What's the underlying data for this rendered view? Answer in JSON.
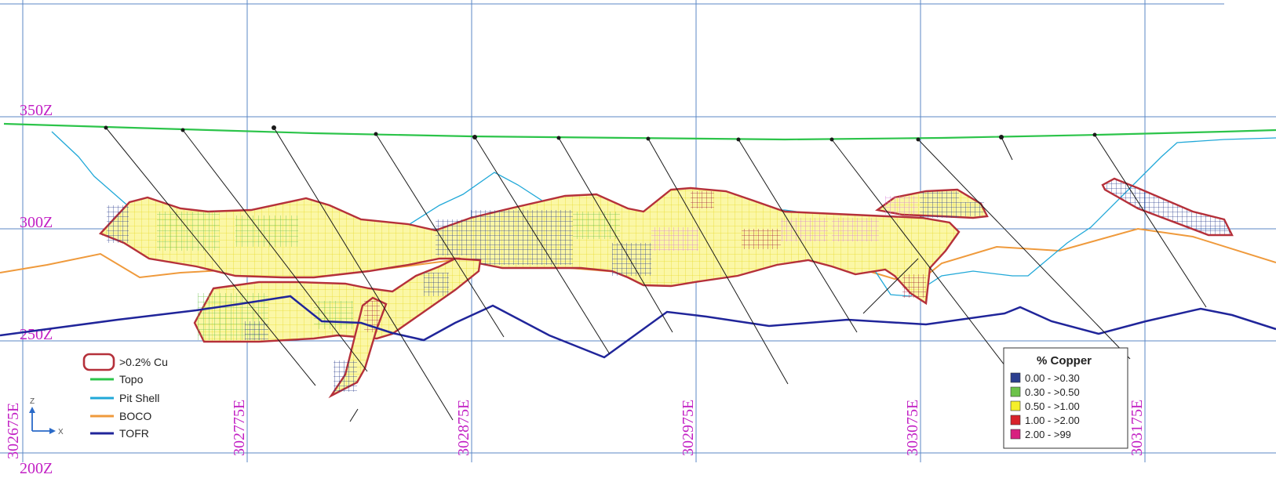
{
  "elevation_labels": [
    "350Z",
    "300Z",
    "250Z",
    "200Z"
  ],
  "easting_labels": [
    "302675E",
    "302775E",
    "302875E",
    "302975E",
    "303075E",
    "303175E"
  ],
  "legend": {
    "items": [
      {
        "label": ">0.2% Cu",
        "color": "#b5303a",
        "kind": "outline"
      },
      {
        "label": "Topo",
        "color": "#2cc44a",
        "kind": "line"
      },
      {
        "label": "Pit Shell",
        "color": "#20a8d8",
        "kind": "line"
      },
      {
        "label": "BOCO",
        "color": "#ef9a3c",
        "kind": "line"
      },
      {
        "label": "TOFR",
        "color": "#20259a",
        "kind": "line"
      }
    ]
  },
  "axis_indicator": {
    "z": "Z",
    "x": "X"
  },
  "copper_legend": {
    "title": "% Copper",
    "ranges": [
      {
        "label": "0.00 - >0.30",
        "color": "#2c3f8f"
      },
      {
        "label": "0.30 - >0.50",
        "color": "#6cc24a"
      },
      {
        "label": "0.50 - >1.00",
        "color": "#f5ef2a"
      },
      {
        "label": "1.00 - >2.00",
        "color": "#d8232a"
      },
      {
        "label": "2.00 - >99",
        "color": "#d81f7f"
      }
    ]
  }
}
